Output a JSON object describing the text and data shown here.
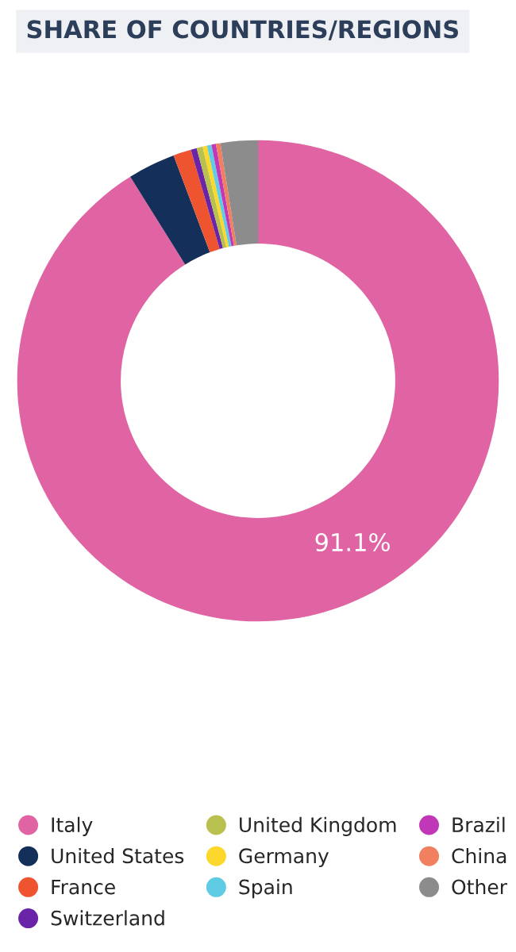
{
  "chart_data": {
    "type": "donut",
    "title": "SHARE OF COUNTRIES/REGIONS",
    "categories": [
      "Italy",
      "United States",
      "France",
      "Switzerland",
      "United Kingdom",
      "Germany",
      "Spain",
      "Brazil",
      "China",
      "Other"
    ],
    "values": [
      91.1,
      3.2,
      1.2,
      0.4,
      0.4,
      0.3,
      0.3,
      0.3,
      0.3,
      2.5
    ],
    "colors": [
      "#e064a4",
      "#14305a",
      "#ef5430",
      "#6a24a8",
      "#b8c050",
      "#fcd82c",
      "#60cce4",
      "#c038b8",
      "#f08060",
      "#8c8c8c"
    ],
    "value_labels": [
      "91.1%",
      null,
      null,
      null,
      null,
      null,
      null,
      null,
      null,
      null
    ],
    "legend": "bottom"
  }
}
